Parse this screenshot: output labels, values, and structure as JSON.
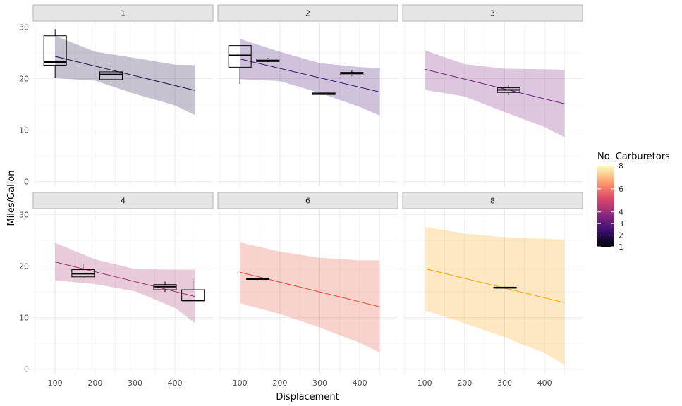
{
  "chart_data": {
    "type": "faceted_box_with_regression",
    "xlabel": "Displacement",
    "ylabel": "Miles/Gallon",
    "xlim": [
      45,
      495
    ],
    "ylim": [
      -1,
      31
    ],
    "x_ticks": [
      100,
      200,
      300,
      400
    ],
    "y_ticks": [
      0,
      10,
      20,
      30
    ],
    "grid": true,
    "legend": {
      "title": "No. Carburetors",
      "position": "right",
      "entries": [
        {
          "label": "1",
          "value": 1
        },
        {
          "label": "2",
          "value": 2
        },
        {
          "label": "3",
          "value": 3
        },
        {
          "label": "4",
          "value": 4
        },
        {
          "label": "6",
          "value": 6
        },
        {
          "label": "8",
          "value": 8
        }
      ],
      "colors": [
        "#000004",
        "#3b0f70",
        "#8c2981",
        "#de4968",
        "#fe9f6d",
        "#fcfdbf"
      ]
    },
    "facets": [
      {
        "label": "1",
        "color": "#1e0c45",
        "band": [
          [
            100,
            20.1,
            28.3
          ],
          [
            200,
            19.6,
            25.2
          ],
          [
            300,
            17.0,
            24.0
          ],
          [
            400,
            14.8,
            22.7
          ],
          [
            450,
            12.9,
            22.6
          ]
        ],
        "line": [
          [
            100,
            24.3
          ],
          [
            450,
            17.7
          ]
        ],
        "boxes": [
          {
            "x": 100,
            "q1": 22.6,
            "median": 23.2,
            "q3": 28.3,
            "min": 20.1,
            "max": 29.6
          },
          {
            "x": 240,
            "q1": 19.8,
            "median": 20.8,
            "q3": 21.3,
            "min": 18.9,
            "max": 22.4
          }
        ]
      },
      {
        "label": "2",
        "color": "#3b0f70",
        "band": [
          [
            100,
            19.9,
            27.7
          ],
          [
            200,
            19.5,
            25.2
          ],
          [
            300,
            17.2,
            23.0
          ],
          [
            400,
            14.5,
            22.2
          ],
          [
            450,
            12.8,
            22.0
          ]
        ],
        "line": [
          [
            100,
            23.8
          ],
          [
            450,
            17.4
          ]
        ],
        "boxes": [
          {
            "x": 100,
            "q1": 22.2,
            "median": 24.5,
            "q3": 26.4,
            "min": 19.0,
            "max": 26.5
          },
          {
            "x": 170,
            "q1": 23.3,
            "median": 23.5,
            "q3": 23.8,
            "min": 23.2,
            "max": 24.0
          },
          {
            "x": 310,
            "q1": 16.9,
            "median": 17.0,
            "q3": 17.2,
            "min": 16.8,
            "max": 17.3
          },
          {
            "x": 380,
            "q1": 20.7,
            "median": 21.0,
            "q3": 21.2,
            "min": 20.5,
            "max": 21.5
          }
        ]
      },
      {
        "label": "3",
        "color": "#721f81",
        "band": [
          [
            100,
            17.8,
            25.5
          ],
          [
            200,
            16.5,
            22.8
          ],
          [
            300,
            13.5,
            21.9
          ],
          [
            400,
            10.6,
            21.8
          ],
          [
            450,
            8.6,
            21.7
          ]
        ],
        "line": [
          [
            100,
            21.8
          ],
          [
            450,
            15.1
          ]
        ],
        "boxes": [
          {
            "x": 310,
            "q1": 17.3,
            "median": 17.8,
            "q3": 18.2,
            "min": 16.8,
            "max": 18.8
          }
        ]
      },
      {
        "label": "4",
        "color": "#a1306f",
        "band": [
          [
            100,
            17.2,
            24.5
          ],
          [
            200,
            16.5,
            21.3
          ],
          [
            300,
            15.1,
            19.4
          ],
          [
            400,
            11.9,
            19.3
          ],
          [
            450,
            8.9,
            19.3
          ]
        ],
        "line": [
          [
            100,
            20.8
          ],
          [
            450,
            14.1
          ]
        ],
        "boxes": [
          {
            "x": 170,
            "q1": 17.9,
            "median": 18.5,
            "q3": 19.3,
            "min": 17.6,
            "max": 20.4
          },
          {
            "x": 375,
            "q1": 15.4,
            "median": 16.0,
            "q3": 16.4,
            "min": 15.0,
            "max": 17.0
          },
          {
            "x": 445,
            "q1": 13.3,
            "median": 13.3,
            "q3": 15.4,
            "min": 13.3,
            "max": 17.5
          }
        ]
      },
      {
        "label": "6",
        "color": "#e34a33",
        "band": [
          [
            100,
            12.8,
            24.6
          ],
          [
            200,
            10.7,
            22.8
          ],
          [
            300,
            8.1,
            21.6
          ],
          [
            400,
            5.1,
            21.1
          ],
          [
            450,
            3.2,
            21.1
          ]
        ],
        "line": [
          [
            100,
            18.8
          ],
          [
            450,
            12.1
          ]
        ],
        "boxes": [
          {
            "x": 145,
            "q1": 17.4,
            "median": 17.5,
            "q3": 17.6,
            "min": 17.3,
            "max": 17.7
          }
        ]
      },
      {
        "label": "8",
        "color": "#fca50a",
        "band": [
          [
            100,
            11.4,
            27.6
          ],
          [
            200,
            8.9,
            26.3
          ],
          [
            300,
            6.2,
            25.6
          ],
          [
            400,
            3.1,
            25.3
          ],
          [
            450,
            0.8,
            25.1
          ]
        ],
        "line": [
          [
            100,
            19.5
          ],
          [
            450,
            12.9
          ]
        ],
        "boxes": [
          {
            "x": 301,
            "q1": 15.7,
            "median": 15.8,
            "q3": 15.9,
            "min": 15.6,
            "max": 16.0
          }
        ]
      }
    ]
  }
}
